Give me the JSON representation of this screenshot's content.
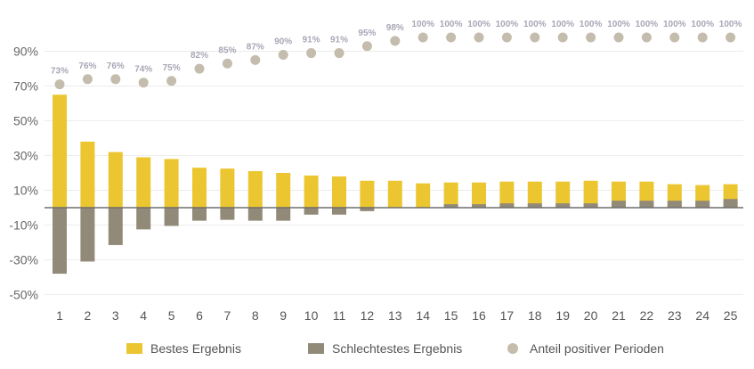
{
  "chart_data": {
    "type": "bar",
    "categories": [
      "1",
      "2",
      "3",
      "4",
      "5",
      "6",
      "7",
      "8",
      "9",
      "10",
      "11",
      "12",
      "13",
      "14",
      "15",
      "16",
      "17",
      "18",
      "19",
      "20",
      "21",
      "22",
      "23",
      "24",
      "25"
    ],
    "series": [
      {
        "name": "Bestes Ergebnis",
        "color": "#ecc630",
        "values": [
          65,
          38,
          32,
          29,
          28,
          23,
          22.5,
          21,
          20,
          18.5,
          18,
          15.5,
          15.5,
          14,
          14.5,
          14.5,
          15,
          15,
          15,
          15.5,
          15,
          15,
          13.5,
          13,
          13.5
        ]
      },
      {
        "name": "Schlechtestes Ergebnis",
        "color": "#928a78",
        "values": [
          -38,
          -31,
          -21.5,
          -12.5,
          -10.5,
          -7.5,
          -7,
          -7.5,
          -7.5,
          -4,
          -4,
          -2,
          0,
          0,
          2,
          2,
          2.5,
          2.5,
          2.5,
          2.5,
          4,
          4,
          4,
          4,
          5
        ]
      },
      {
        "name": "Anteil positiver Perioden",
        "color": "#c4bcac",
        "values": [
          73,
          76,
          76,
          74,
          75,
          82,
          85,
          87,
          90,
          91,
          91,
          95,
          98,
          100,
          100,
          100,
          100,
          100,
          100,
          100,
          100,
          100,
          100,
          100,
          100
        ],
        "labels": [
          "73%",
          "76%",
          "76%",
          "74%",
          "75%",
          "82%",
          "85%",
          "87%",
          "90%",
          "91%",
          "91%",
          "95%",
          "98%",
          "100%",
          "100%",
          "100%",
          "100%",
          "100%",
          "100%",
          "100%",
          "100%",
          "100%",
          "100%",
          "100%",
          "100%"
        ]
      }
    ],
    "yticks": [
      90,
      70,
      50,
      30,
      10,
      -10,
      -30,
      -50
    ],
    "ytick_labels": [
      "90%",
      "70%",
      "50%",
      "30%",
      "10%",
      "-10%",
      "-30%",
      "-50%"
    ],
    "ylim": [
      -55,
      100
    ],
    "title": "",
    "xlabel": "",
    "ylabel": "",
    "grid": true,
    "legend_position": "bottom"
  }
}
